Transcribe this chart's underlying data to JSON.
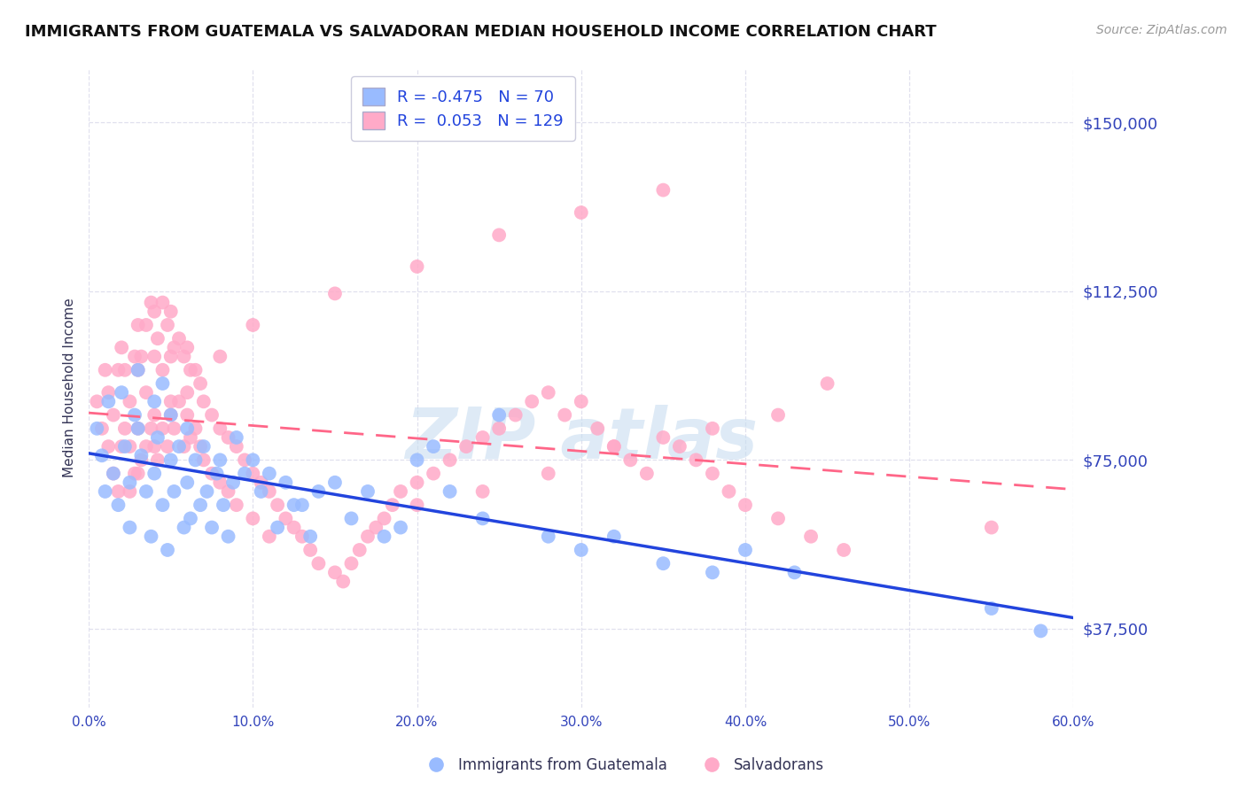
{
  "title": "IMMIGRANTS FROM GUATEMALA VS SALVADORAN MEDIAN HOUSEHOLD INCOME CORRELATION CHART",
  "source": "Source: ZipAtlas.com",
  "ylabel": "Median Household Income",
  "xmin": 0.0,
  "xmax": 0.6,
  "ymin": 20000,
  "ymax": 162000,
  "yticks": [
    37500,
    75000,
    112500,
    150000
  ],
  "ytick_labels": [
    "$37,500",
    "$75,000",
    "$112,500",
    "$150,000"
  ],
  "xticks": [
    0.0,
    0.1,
    0.2,
    0.3,
    0.4,
    0.5,
    0.6
  ],
  "xtick_labels": [
    "0.0%",
    "10.0%",
    "20.0%",
    "30.0%",
    "40.0%",
    "50.0%",
    "60.0%"
  ],
  "blue_R": -0.475,
  "blue_N": 70,
  "pink_R": 0.053,
  "pink_N": 129,
  "blue_color": "#99bbff",
  "pink_color": "#ffaac8",
  "blue_line_color": "#2244dd",
  "pink_line_color": "#ff6688",
  "grid_color": "#e0e0ee",
  "background_color": "#ffffff",
  "axis_label_color": "#3344bb",
  "watermark_color": "#c8ddf0",
  "legend_label_blue": "Immigrants from Guatemala",
  "legend_label_pink": "Salvadorans",
  "blue_scatter_x": [
    0.005,
    0.008,
    0.01,
    0.012,
    0.015,
    0.018,
    0.02,
    0.022,
    0.025,
    0.025,
    0.028,
    0.03,
    0.03,
    0.032,
    0.035,
    0.038,
    0.04,
    0.04,
    0.042,
    0.045,
    0.045,
    0.048,
    0.05,
    0.05,
    0.052,
    0.055,
    0.058,
    0.06,
    0.06,
    0.062,
    0.065,
    0.068,
    0.07,
    0.072,
    0.075,
    0.078,
    0.08,
    0.082,
    0.085,
    0.088,
    0.09,
    0.095,
    0.1,
    0.105,
    0.11,
    0.115,
    0.12,
    0.125,
    0.13,
    0.135,
    0.14,
    0.15,
    0.16,
    0.17,
    0.18,
    0.19,
    0.2,
    0.21,
    0.22,
    0.24,
    0.25,
    0.28,
    0.3,
    0.32,
    0.35,
    0.38,
    0.4,
    0.43,
    0.55,
    0.58
  ],
  "blue_scatter_y": [
    82000,
    76000,
    68000,
    88000,
    72000,
    65000,
    90000,
    78000,
    70000,
    60000,
    85000,
    95000,
    82000,
    76000,
    68000,
    58000,
    88000,
    72000,
    80000,
    92000,
    65000,
    55000,
    85000,
    75000,
    68000,
    78000,
    60000,
    82000,
    70000,
    62000,
    75000,
    65000,
    78000,
    68000,
    60000,
    72000,
    75000,
    65000,
    58000,
    70000,
    80000,
    72000,
    75000,
    68000,
    72000,
    60000,
    70000,
    65000,
    65000,
    58000,
    68000,
    70000,
    62000,
    68000,
    58000,
    60000,
    75000,
    78000,
    68000,
    62000,
    85000,
    58000,
    55000,
    58000,
    52000,
    50000,
    55000,
    50000,
    42000,
    37000
  ],
  "pink_scatter_x": [
    0.005,
    0.008,
    0.01,
    0.012,
    0.012,
    0.015,
    0.015,
    0.018,
    0.018,
    0.02,
    0.02,
    0.022,
    0.022,
    0.025,
    0.025,
    0.025,
    0.028,
    0.028,
    0.03,
    0.03,
    0.03,
    0.032,
    0.032,
    0.035,
    0.035,
    0.035,
    0.038,
    0.038,
    0.04,
    0.04,
    0.04,
    0.042,
    0.042,
    0.045,
    0.045,
    0.045,
    0.048,
    0.048,
    0.05,
    0.05,
    0.05,
    0.052,
    0.052,
    0.055,
    0.055,
    0.058,
    0.058,
    0.06,
    0.06,
    0.062,
    0.062,
    0.065,
    0.065,
    0.068,
    0.068,
    0.07,
    0.07,
    0.075,
    0.075,
    0.08,
    0.08,
    0.085,
    0.085,
    0.09,
    0.09,
    0.095,
    0.1,
    0.1,
    0.105,
    0.11,
    0.11,
    0.115,
    0.12,
    0.125,
    0.13,
    0.135,
    0.14,
    0.15,
    0.155,
    0.16,
    0.165,
    0.17,
    0.175,
    0.18,
    0.185,
    0.19,
    0.2,
    0.21,
    0.22,
    0.23,
    0.24,
    0.25,
    0.26,
    0.27,
    0.28,
    0.29,
    0.3,
    0.31,
    0.32,
    0.33,
    0.34,
    0.35,
    0.36,
    0.37,
    0.38,
    0.39,
    0.4,
    0.42,
    0.44,
    0.46,
    0.35,
    0.3,
    0.25,
    0.2,
    0.15,
    0.1,
    0.08,
    0.06,
    0.05,
    0.04,
    0.03,
    0.45,
    0.42,
    0.38,
    0.32,
    0.28,
    0.24,
    0.2,
    0.55
  ],
  "pink_scatter_y": [
    88000,
    82000,
    95000,
    78000,
    90000,
    85000,
    72000,
    95000,
    68000,
    100000,
    78000,
    95000,
    82000,
    88000,
    78000,
    68000,
    98000,
    72000,
    105000,
    95000,
    82000,
    98000,
    75000,
    105000,
    90000,
    78000,
    110000,
    82000,
    108000,
    98000,
    85000,
    102000,
    75000,
    110000,
    95000,
    82000,
    105000,
    78000,
    108000,
    98000,
    88000,
    100000,
    82000,
    102000,
    88000,
    98000,
    78000,
    100000,
    85000,
    95000,
    80000,
    95000,
    82000,
    92000,
    78000,
    88000,
    75000,
    85000,
    72000,
    82000,
    70000,
    80000,
    68000,
    78000,
    65000,
    75000,
    72000,
    62000,
    70000,
    68000,
    58000,
    65000,
    62000,
    60000,
    58000,
    55000,
    52000,
    50000,
    48000,
    52000,
    55000,
    58000,
    60000,
    62000,
    65000,
    68000,
    70000,
    72000,
    75000,
    78000,
    80000,
    82000,
    85000,
    88000,
    90000,
    85000,
    88000,
    82000,
    78000,
    75000,
    72000,
    80000,
    78000,
    75000,
    72000,
    68000,
    65000,
    62000,
    58000,
    55000,
    135000,
    130000,
    125000,
    118000,
    112000,
    105000,
    98000,
    90000,
    85000,
    78000,
    72000,
    92000,
    85000,
    82000,
    78000,
    72000,
    68000,
    65000,
    60000
  ]
}
